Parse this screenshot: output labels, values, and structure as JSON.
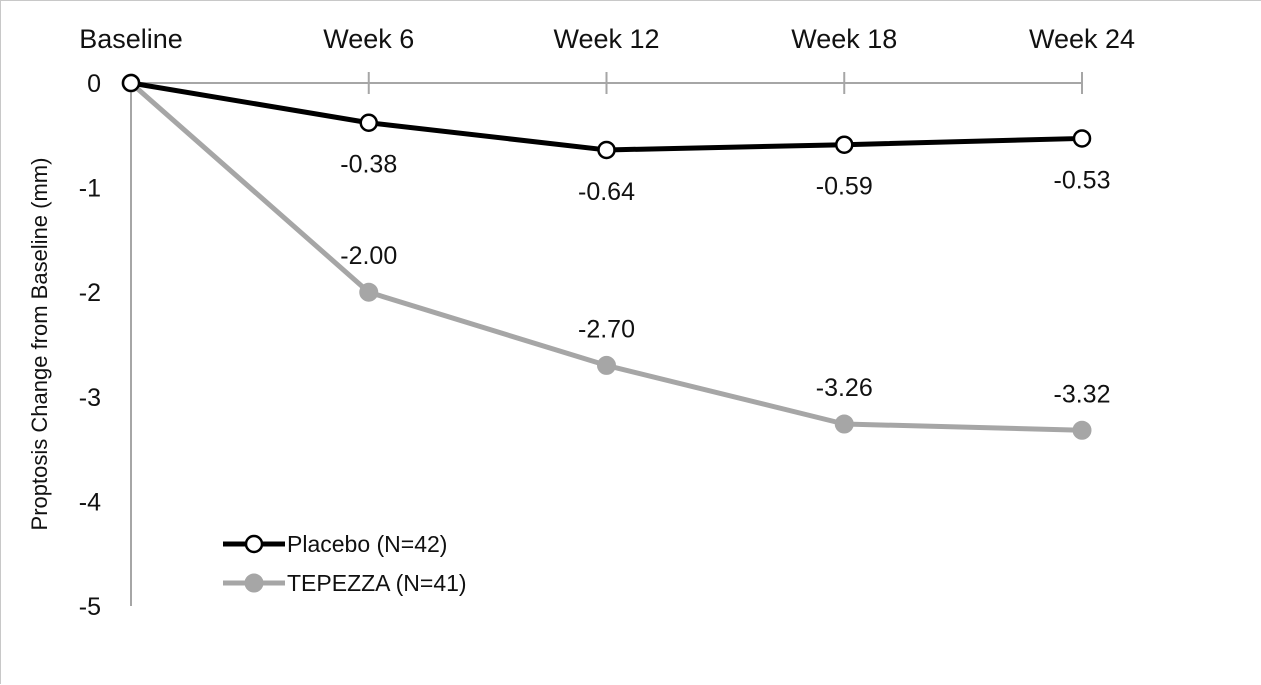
{
  "chart_data": {
    "type": "line",
    "title": "",
    "xlabel": "",
    "ylabel": "Proptosis Change from Baseline (mm)",
    "categories": [
      "Baseline",
      "Week 6",
      "Week 12",
      "Week 18",
      "Week 24"
    ],
    "ylim": [
      -5,
      0
    ],
    "yticks": [
      "0",
      "-1",
      "-2",
      "-3",
      "-4",
      "-5"
    ],
    "grid": false,
    "legend_position": "bottom-left",
    "series": [
      {
        "name": "Placebo (N=42)",
        "values": [
          0,
          -0.38,
          -0.64,
          -0.59,
          -0.53
        ],
        "labels": [
          "",
          "-0.38",
          "-0.64",
          "-0.59",
          "-0.53"
        ],
        "color": "#000000",
        "marker": "open-circle"
      },
      {
        "name": "TEPEZZA (N=41)",
        "values": [
          0,
          -2.0,
          -2.7,
          -3.26,
          -3.32
        ],
        "labels": [
          "",
          "-2.00",
          "-2.70",
          "-3.26",
          "-3.32"
        ],
        "color": "#a6a6a6",
        "marker": "filled-circle"
      }
    ],
    "axis_color": "#a6a6a6"
  }
}
